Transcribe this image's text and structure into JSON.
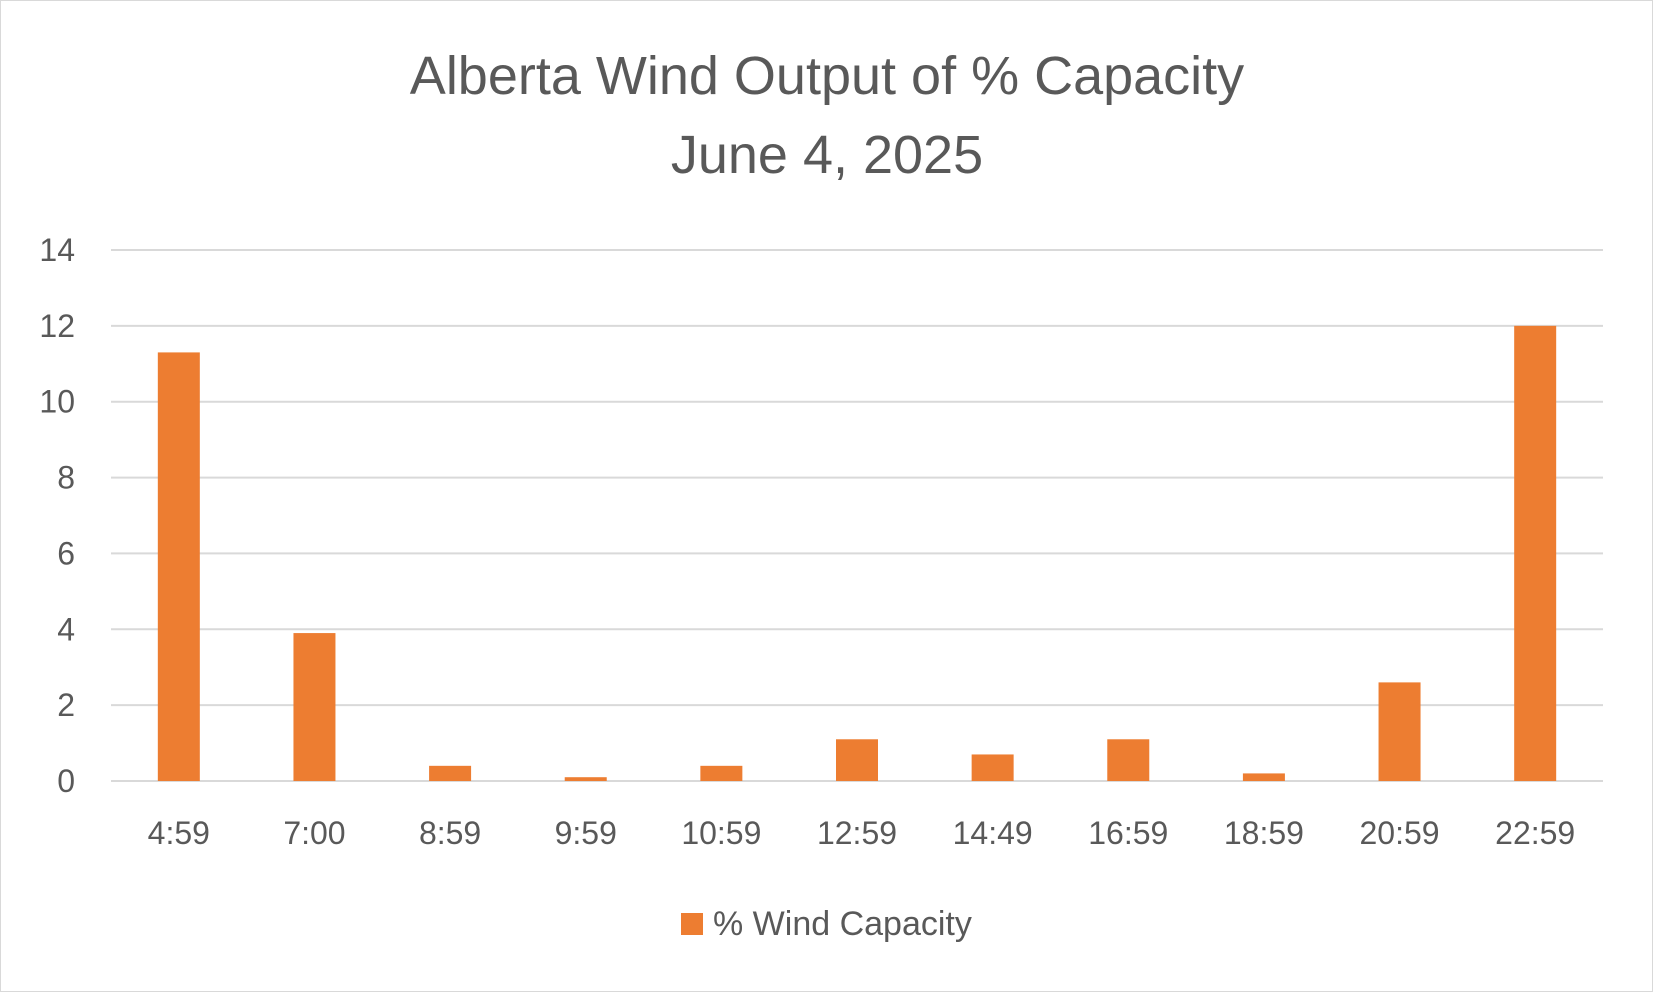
{
  "chart_data": {
    "type": "bar",
    "title": "Alberta Wind Output of % Capacity",
    "subtitle": "June 4, 2025",
    "categories": [
      "4:59",
      "7:00",
      "8:59",
      "9:59",
      "10:59",
      "12:59",
      "14:49",
      "16:59",
      "18:59",
      "20:59",
      "22:59"
    ],
    "series": [
      {
        "name": "% Wind Capacity",
        "color": "#ED7D31",
        "values": [
          11.3,
          3.9,
          0.4,
          0.1,
          0.4,
          1.1,
          0.7,
          1.1,
          0.2,
          2.6,
          12.0
        ]
      }
    ],
    "ylim": [
      0,
      14
    ],
    "yticks": [
      "0",
      "2",
      "4",
      "6",
      "8",
      "10",
      "12",
      "14"
    ],
    "grid": true,
    "legend_position": "bottom",
    "xlabel": "",
    "ylabel": ""
  }
}
